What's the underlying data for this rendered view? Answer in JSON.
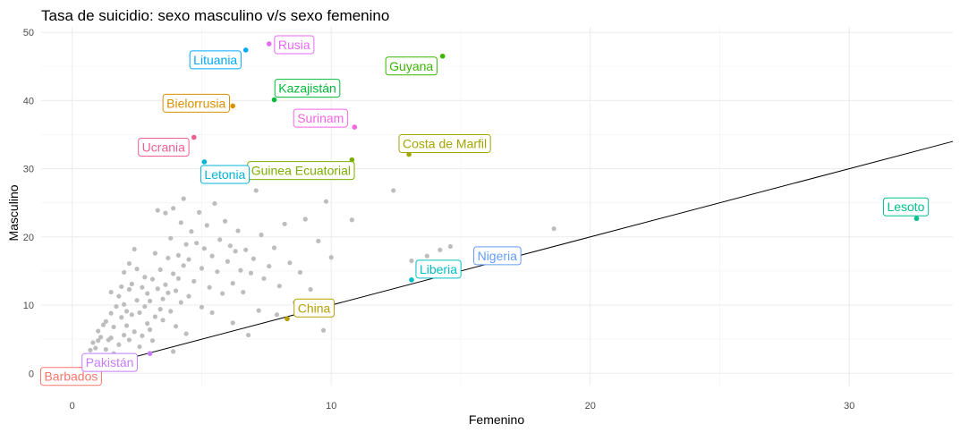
{
  "chart_data": {
    "type": "scatter",
    "title": "Tasa de suicidio: sexo masculino v/s  sexo femenino",
    "xlabel": "Femenino",
    "ylabel": "Masculino",
    "xlim": [
      -1.2,
      34.0
    ],
    "ylim": [
      -1.8,
      50.8
    ],
    "xticks": [
      0,
      10,
      20,
      30
    ],
    "yticks": [
      0,
      10,
      20,
      30,
      40,
      50
    ],
    "grid": true,
    "reference_line": {
      "slope": 1,
      "intercept": 0
    },
    "background_color": "#bdbdbd",
    "background_points": [
      [
        0.5,
        2.4
      ],
      [
        0.7,
        3.4
      ],
      [
        0.8,
        4.5
      ],
      [
        0.9,
        3.7
      ],
      [
        1.0,
        4.8
      ],
      [
        1.0,
        6.2
      ],
      [
        1.1,
        5.3
      ],
      [
        1.2,
        7.1
      ],
      [
        1.3,
        7.6
      ],
      [
        1.3,
        3.5
      ],
      [
        1.4,
        4.9
      ],
      [
        1.5,
        8.8
      ],
      [
        1.5,
        11.9
      ],
      [
        1.5,
        5.2
      ],
      [
        1.6,
        2.9
      ],
      [
        1.6,
        6.8
      ],
      [
        1.7,
        9.8
      ],
      [
        1.8,
        11.3
      ],
      [
        1.8,
        4.2
      ],
      [
        1.9,
        8.2
      ],
      [
        1.9,
        12.7
      ],
      [
        2.0,
        10.1
      ],
      [
        2.0,
        5.6
      ],
      [
        2.0,
        14.8
      ],
      [
        2.1,
        7.0
      ],
      [
        2.1,
        9.1
      ],
      [
        2.2,
        12.3
      ],
      [
        2.2,
        16.1
      ],
      [
        2.2,
        4.9
      ],
      [
        2.3,
        8.6
      ],
      [
        2.3,
        13.1
      ],
      [
        2.4,
        6.1
      ],
      [
        2.4,
        18.2
      ],
      [
        2.5,
        10.7
      ],
      [
        2.5,
        15.3
      ],
      [
        2.6,
        8.9
      ],
      [
        2.6,
        3.9
      ],
      [
        2.7,
        12.6
      ],
      [
        2.7,
        5.5
      ],
      [
        2.8,
        9.8
      ],
      [
        2.8,
        14.1
      ],
      [
        2.9,
        7.3
      ],
      [
        2.9,
        11.7
      ],
      [
        3.0,
        6.4
      ],
      [
        3.0,
        10.6
      ],
      [
        3.1,
        13.8
      ],
      [
        3.1,
        4.8
      ],
      [
        3.2,
        17.6
      ],
      [
        3.2,
        8.3
      ],
      [
        3.3,
        12.4
      ],
      [
        3.3,
        23.9
      ],
      [
        3.4,
        9.4
      ],
      [
        3.4,
        15.2
      ],
      [
        3.5,
        10.9
      ],
      [
        3.5,
        7.8
      ],
      [
        3.6,
        13.0
      ],
      [
        3.6,
        23.5
      ],
      [
        3.7,
        16.9
      ],
      [
        3.7,
        11.8
      ],
      [
        3.8,
        9.1
      ],
      [
        3.8,
        19.8
      ],
      [
        3.9,
        14.6
      ],
      [
        3.9,
        24.2
      ],
      [
        4.0,
        12.1
      ],
      [
        4.0,
        6.9
      ],
      [
        4.1,
        17.3
      ],
      [
        4.1,
        13.9
      ],
      [
        4.2,
        22.1
      ],
      [
        4.2,
        10.4
      ],
      [
        4.3,
        15.8
      ],
      [
        4.3,
        25.6
      ],
      [
        4.4,
        18.9
      ],
      [
        4.5,
        11.3
      ],
      [
        4.5,
        16.7
      ],
      [
        4.6,
        20.8
      ],
      [
        4.7,
        13.5
      ],
      [
        4.8,
        19.1
      ],
      [
        4.9,
        23.6
      ],
      [
        5.0,
        15.4
      ],
      [
        5.0,
        9.7
      ],
      [
        5.1,
        18.3
      ],
      [
        5.2,
        21.7
      ],
      [
        5.3,
        12.6
      ],
      [
        5.4,
        17.2
      ],
      [
        5.5,
        24.9
      ],
      [
        5.6,
        14.9
      ],
      [
        5.7,
        19.6
      ],
      [
        5.8,
        11.7
      ],
      [
        5.9,
        22.3
      ],
      [
        6.0,
        16.4
      ],
      [
        6.1,
        18.7
      ],
      [
        6.2,
        13.2
      ],
      [
        6.3,
        17.9
      ],
      [
        6.4,
        20.9
      ],
      [
        6.5,
        15.1
      ],
      [
        6.6,
        11.9
      ],
      [
        6.7,
        18.1
      ],
      [
        6.8,
        5.6
      ],
      [
        6.9,
        14.7
      ],
      [
        7.0,
        16.8
      ],
      [
        7.1,
        26.8
      ],
      [
        7.2,
        9.2
      ],
      [
        7.3,
        20.3
      ],
      [
        7.4,
        13.9
      ],
      [
        7.6,
        15.7
      ],
      [
        7.8,
        18.4
      ],
      [
        8.0,
        12.8
      ],
      [
        8.2,
        21.9
      ],
      [
        8.4,
        16.2
      ],
      [
        8.6,
        10.4
      ],
      [
        8.8,
        14.8
      ],
      [
        9.0,
        22.6
      ],
      [
        9.2,
        12.3
      ],
      [
        9.5,
        19.4
      ],
      [
        9.7,
        6.3
      ],
      [
        9.8,
        25.2
      ],
      [
        10.0,
        17.0
      ],
      [
        10.8,
        22.5
      ],
      [
        12.4,
        26.8
      ],
      [
        13.1,
        16.5
      ],
      [
        13.7,
        17.2
      ],
      [
        14.2,
        18.1
      ],
      [
        14.6,
        18.6
      ],
      [
        18.6,
        21.2
      ],
      [
        6.2,
        7.4
      ],
      [
        5.4,
        8.9
      ],
      [
        4.4,
        5.8
      ],
      [
        3.9,
        3.2
      ],
      [
        7.9,
        8.6
      ],
      [
        9.3,
        9.8
      ]
    ],
    "highlighted_points": [
      {
        "country": "Barbados",
        "x": 0.3,
        "y": 0.6,
        "color": "#f8766d"
      },
      {
        "country": "Pakistán",
        "x": 3.0,
        "y": 2.9,
        "color": "#c77cff"
      },
      {
        "country": "China",
        "x": 8.3,
        "y": 8.0,
        "color": "#b79f00"
      },
      {
        "country": "Liberia",
        "x": 13.1,
        "y": 13.7,
        "color": "#00bfc4"
      },
      {
        "country": "Nigeria",
        "x": 17.1,
        "y": 17.5,
        "color": "#619cff"
      },
      {
        "country": "Lesoto",
        "x": 32.6,
        "y": 22.7,
        "color": "#00c08b"
      },
      {
        "country": "Guinea Ecuatorial",
        "x": 10.8,
        "y": 31.3,
        "color": "#7cae00"
      },
      {
        "country": "Costa de Marfil",
        "x": 13.0,
        "y": 32.1,
        "color": "#a3a500"
      },
      {
        "country": "Letonia",
        "x": 5.1,
        "y": 31.0,
        "color": "#00b4d8"
      },
      {
        "country": "Ucrania",
        "x": 4.7,
        "y": 34.6,
        "color": "#ef5f94"
      },
      {
        "country": "Bielorrusia",
        "x": 6.2,
        "y": 39.2,
        "color": "#d89000"
      },
      {
        "country": "Surinam",
        "x": 10.9,
        "y": 36.1,
        "color": "#f564e3"
      },
      {
        "country": "Kazajistán",
        "x": 7.8,
        "y": 40.1,
        "color": "#00ba38"
      },
      {
        "country": "Lituania",
        "x": 6.7,
        "y": 47.4,
        "color": "#00a9ff"
      },
      {
        "country": "Rusia",
        "x": 7.6,
        "y": 48.3,
        "color": "#e76bf3"
      },
      {
        "country": "Guyana",
        "x": 14.3,
        "y": 46.5,
        "color": "#39b600"
      }
    ]
  }
}
